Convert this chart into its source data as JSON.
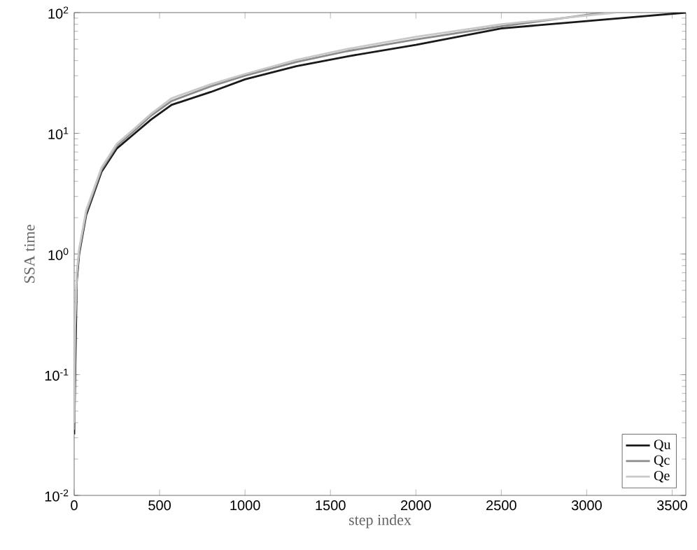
{
  "chart_data": {
    "type": "line",
    "xlabel": "step index",
    "ylabel": "SSA time",
    "log": "y",
    "xlim": [
      0,
      3580
    ],
    "ylim": [
      0.01,
      100
    ],
    "xticks": [
      0,
      500,
      1000,
      1500,
      2000,
      2500,
      3000,
      3500
    ],
    "yticks": [
      {
        "value": 0.01,
        "label": "10$^{-2}$"
      },
      {
        "value": 0.1,
        "label": "10$^{-1}$"
      },
      {
        "value": 1,
        "label": "10$^{0}$"
      },
      {
        "value": 10,
        "label": "10$^{1}$"
      },
      {
        "value": 100,
        "label": "10$^{2}$"
      }
    ],
    "legend": "bottom right",
    "grid": false,
    "marker": "none",
    "line_style": "solid",
    "series": [
      {
        "name": "Qu",
        "color": "#1a1a1a",
        "x": [
          0,
          5,
          15,
          29,
          70,
          160,
          250,
          355,
          450,
          570,
          800,
          1000,
          1300,
          1611,
          2000,
          2500,
          3000,
          3580
        ],
        "values": [
          0.032,
          null,
          0.6,
          1.0,
          2.1,
          4.8,
          7.5,
          10,
          13,
          17.2,
          22,
          28,
          36,
          43.7,
          54,
          74,
          85,
          100
        ]
      },
      {
        "name": "Qc",
        "color": "#8c8c8c",
        "x": [
          0,
          5,
          15,
          29,
          70,
          160,
          250,
          355,
          450,
          570,
          800,
          1000,
          1300,
          1600,
          2000,
          2500,
          3100
        ],
        "values": [
          0.035,
          0.22,
          0.65,
          1.05,
          2.2,
          5.0,
          7.9,
          10.6,
          14,
          18.5,
          24.5,
          30,
          39,
          48,
          60,
          77,
          100
        ]
      },
      {
        "name": "Qe",
        "color": "#c8c8c8",
        "x": [
          0,
          5,
          15,
          29,
          70,
          160,
          250,
          355,
          450,
          570,
          800,
          1000,
          1300,
          1600,
          2000,
          2500,
          3168
        ],
        "values": [
          0.04,
          0.25,
          0.7,
          1.1,
          2.3,
          5.2,
          8.2,
          11,
          14.5,
          19.5,
          25.5,
          31,
          40.5,
          50,
          63,
          80,
          100
        ]
      }
    ]
  }
}
